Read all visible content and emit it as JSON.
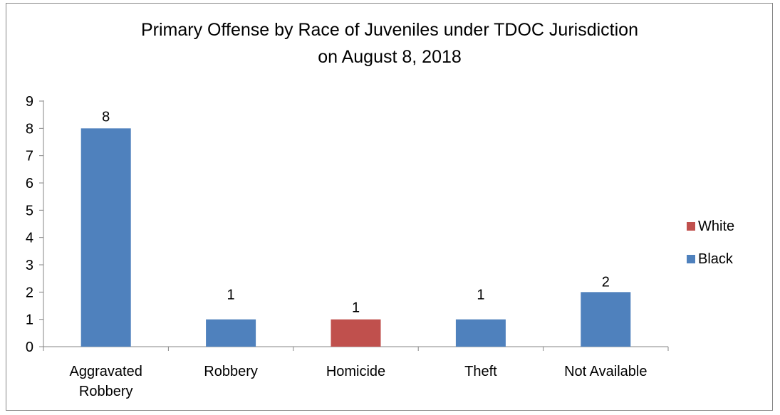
{
  "chart_data": {
    "type": "bar",
    "title": "Primary Offense by Race of Juveniles under TDOC Jurisdiction on August 8, 2018",
    "title_lines": [
      "Primary Offense by Race of Juveniles under TDOC Jurisdiction",
      "on August 8, 2018"
    ],
    "categories": [
      [
        "Aggravated",
        "Robbery"
      ],
      [
        "Robbery"
      ],
      [
        "Homicide"
      ],
      [
        "Theft"
      ],
      [
        "Not Available"
      ]
    ],
    "values": [
      8,
      1,
      1,
      1,
      2
    ],
    "bar_series": [
      "Black",
      "Black",
      "White",
      "Black",
      "Black"
    ],
    "data_labels": [
      "8",
      "1",
      "1",
      "1",
      "2"
    ],
    "series": [
      {
        "name": "White",
        "color": "#C0504D"
      },
      {
        "name": "Black",
        "color": "#4F81BD"
      }
    ],
    "ylim": [
      0,
      9
    ],
    "yticks": [
      "0",
      "1",
      "2",
      "3",
      "4",
      "5",
      "6",
      "7",
      "8",
      "9"
    ],
    "xlabel": "",
    "ylabel": "",
    "grid": false,
    "legend_position": "right"
  }
}
